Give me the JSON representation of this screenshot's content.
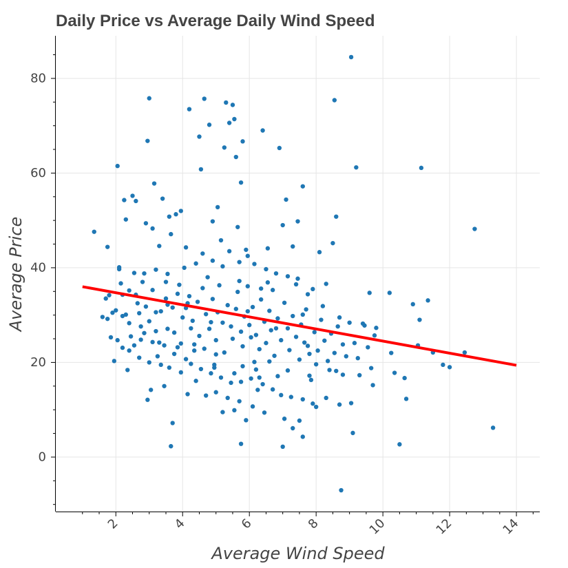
{
  "chart_data": {
    "type": "scatter",
    "title": "Daily Price vs Average Daily Wind Speed",
    "xlabel": "Average Wind Speed",
    "ylabel": "Average Price",
    "xlim": [
      0.2,
      14.7
    ],
    "ylim": [
      -11.5,
      89
    ],
    "x_ticks": [
      2,
      4,
      6,
      8,
      10,
      12,
      14
    ],
    "y_ticks": [
      0,
      20,
      40,
      60,
      80
    ],
    "x_tick_labels": [
      "2",
      "4",
      "6",
      "8",
      "10",
      "12",
      "14"
    ],
    "y_tick_labels": [
      "0",
      "20",
      "40",
      "60",
      "80"
    ],
    "grid": true,
    "point_color": "#1f77b4",
    "line_color": "#ff0000",
    "trend_line": {
      "x": [
        1.0,
        14.0
      ],
      "y": [
        36.0,
        19.4
      ]
    },
    "points": [
      [
        1.35,
        47.6
      ],
      [
        1.75,
        44.4
      ],
      [
        1.9,
        30.5
      ],
      [
        1.8,
        34.2
      ],
      [
        1.95,
        20.3
      ],
      [
        2.05,
        61.5
      ],
      [
        2.1,
        40.1
      ],
      [
        2.25,
        54.3
      ],
      [
        2.3,
        50.2
      ],
      [
        2.5,
        55.2
      ],
      [
        2.6,
        54.1
      ],
      [
        2.4,
        35.2
      ],
      [
        2.2,
        29.8
      ],
      [
        2.45,
        25.5
      ],
      [
        2.35,
        18.4
      ],
      [
        2.55,
        23.6
      ],
      [
        2.7,
        30.4
      ],
      [
        2.9,
        49.4
      ],
      [
        2.95,
        66.8
      ],
      [
        3.0,
        75.8
      ],
      [
        3.1,
        48.3
      ],
      [
        3.15,
        57.8
      ],
      [
        3.2,
        30.6
      ],
      [
        3.3,
        44.6
      ],
      [
        3.4,
        54.6
      ],
      [
        3.5,
        33.5
      ],
      [
        2.8,
        37.0
      ],
      [
        2.85,
        26.2
      ],
      [
        2.95,
        12.1
      ],
      [
        3.05,
        14.2
      ],
      [
        3.25,
        21.3
      ],
      [
        3.45,
        15.0
      ],
      [
        3.55,
        27.1
      ],
      [
        3.6,
        50.8
      ],
      [
        3.65,
        47.1
      ],
      [
        3.7,
        7.2
      ],
      [
        3.65,
        2.3
      ],
      [
        3.8,
        51.3
      ],
      [
        3.9,
        36.4
      ],
      [
        3.95,
        52.0
      ],
      [
        4.1,
        44.3
      ],
      [
        4.2,
        73.5
      ],
      [
        4.05,
        40.0
      ],
      [
        4.15,
        32.5
      ],
      [
        4.25,
        27.2
      ],
      [
        4.35,
        22.5
      ],
      [
        4.4,
        16.1
      ],
      [
        4.5,
        67.7
      ],
      [
        4.55,
        60.8
      ],
      [
        4.65,
        75.7
      ],
      [
        4.8,
        70.2
      ],
      [
        4.9,
        49.8
      ],
      [
        4.75,
        38.0
      ],
      [
        4.85,
        28.5
      ],
      [
        4.95,
        19.5
      ],
      [
        5.05,
        52.8
      ],
      [
        5.15,
        45.8
      ],
      [
        5.25,
        65.4
      ],
      [
        5.3,
        74.9
      ],
      [
        5.4,
        70.6
      ],
      [
        5.5,
        74.4
      ],
      [
        5.55,
        71.4
      ],
      [
        5.6,
        63.4
      ],
      [
        5.65,
        48.6
      ],
      [
        5.75,
        58.0
      ],
      [
        5.8,
        66.7
      ],
      [
        5.7,
        37.2
      ],
      [
        5.9,
        43.8
      ],
      [
        5.95,
        30.8
      ],
      [
        6.05,
        25.3
      ],
      [
        6.15,
        20.1
      ],
      [
        6.25,
        14.2
      ],
      [
        6.4,
        69.0
      ],
      [
        6.55,
        44.1
      ],
      [
        6.7,
        35.3
      ],
      [
        6.8,
        27.2
      ],
      [
        6.9,
        65.3
      ],
      [
        7.0,
        49.0
      ],
      [
        7.1,
        54.4
      ],
      [
        7.3,
        44.5
      ],
      [
        7.45,
        49.8
      ],
      [
        7.6,
        57.2
      ],
      [
        7.4,
        36.5
      ],
      [
        7.6,
        30.1
      ],
      [
        7.75,
        23.5
      ],
      [
        7.85,
        16.3
      ],
      [
        8.0,
        10.6
      ],
      [
        8.1,
        43.3
      ],
      [
        8.3,
        36.6
      ],
      [
        8.5,
        45.2
      ],
      [
        8.55,
        75.4
      ],
      [
        8.6,
        50.8
      ],
      [
        8.7,
        29.5
      ],
      [
        8.8,
        17.4
      ],
      [
        8.75,
        -7.0
      ],
      [
        9.05,
        84.5
      ],
      [
        9.2,
        61.2
      ],
      [
        9.1,
        5.1
      ],
      [
        9.3,
        17.3
      ],
      [
        9.45,
        27.8
      ],
      [
        9.6,
        34.7
      ],
      [
        9.7,
        15.2
      ],
      [
        9.8,
        27.3
      ],
      [
        10.2,
        34.7
      ],
      [
        10.25,
        22.0
      ],
      [
        10.35,
        17.8
      ],
      [
        10.5,
        2.7
      ],
      [
        10.65,
        16.7
      ],
      [
        10.7,
        12.3
      ],
      [
        10.9,
        32.3
      ],
      [
        11.05,
        23.6
      ],
      [
        11.1,
        29.0
      ],
      [
        11.15,
        61.1
      ],
      [
        11.35,
        33.1
      ],
      [
        11.5,
        22.1
      ],
      [
        11.8,
        19.5
      ],
      [
        12.0,
        19.0
      ],
      [
        12.45,
        22.1
      ],
      [
        12.75,
        48.2
      ],
      [
        13.3,
        6.2
      ],
      [
        1.6,
        29.6
      ],
      [
        1.7,
        33.5
      ],
      [
        1.75,
        29.2
      ],
      [
        1.85,
        25.3
      ],
      [
        2.0,
        31.0
      ],
      [
        2.15,
        36.7
      ],
      [
        2.2,
        34.3
      ],
      [
        2.3,
        30.1
      ],
      [
        2.4,
        28.3
      ],
      [
        2.6,
        34.3
      ],
      [
        2.65,
        32.5
      ],
      [
        2.75,
        27.6
      ],
      [
        2.9,
        31.8
      ],
      [
        3.0,
        28.7
      ],
      [
        3.1,
        35.3
      ],
      [
        3.2,
        26.6
      ],
      [
        3.3,
        24.2
      ],
      [
        3.35,
        30.8
      ],
      [
        3.5,
        37.0
      ],
      [
        3.55,
        32.2
      ],
      [
        3.7,
        31.6
      ],
      [
        3.75,
        26.3
      ],
      [
        3.85,
        34.5
      ],
      [
        3.95,
        24.0
      ],
      [
        4.0,
        29.5
      ],
      [
        4.1,
        31.5
      ],
      [
        4.2,
        34.0
      ],
      [
        4.3,
        28.8
      ],
      [
        4.45,
        32.8
      ],
      [
        4.5,
        25.6
      ],
      [
        4.6,
        35.7
      ],
      [
        4.7,
        30.2
      ],
      [
        4.8,
        27.1
      ],
      [
        4.9,
        33.4
      ],
      [
        5.0,
        24.7
      ],
      [
        5.05,
        30.6
      ],
      [
        5.1,
        36.3
      ],
      [
        5.2,
        28.4
      ],
      [
        5.25,
        22.1
      ],
      [
        5.35,
        32.1
      ],
      [
        5.45,
        27.6
      ],
      [
        5.5,
        25.0
      ],
      [
        5.6,
        31.3
      ],
      [
        5.65,
        34.9
      ],
      [
        5.75,
        26.5
      ],
      [
        5.8,
        23.4
      ],
      [
        5.85,
        29.7
      ],
      [
        5.95,
        36.1
      ],
      [
        6.0,
        27.9
      ],
      [
        6.1,
        31.7
      ],
      [
        6.2,
        25.8
      ],
      [
        6.3,
        22.8
      ],
      [
        6.35,
        33.3
      ],
      [
        6.45,
        28.6
      ],
      [
        6.5,
        24.1
      ],
      [
        6.6,
        30.9
      ],
      [
        6.65,
        26.8
      ],
      [
        6.75,
        21.4
      ],
      [
        6.85,
        29.3
      ],
      [
        6.95,
        24.7
      ],
      [
        7.05,
        32.6
      ],
      [
        7.15,
        27.2
      ],
      [
        7.2,
        22.6
      ],
      [
        7.3,
        29.8
      ],
      [
        7.4,
        25.4
      ],
      [
        7.5,
        20.6
      ],
      [
        7.55,
        28.0
      ],
      [
        7.65,
        24.2
      ],
      [
        7.7,
        31.2
      ],
      [
        7.8,
        21.8
      ],
      [
        7.95,
        26.4
      ],
      [
        8.05,
        22.5
      ],
      [
        8.15,
        29.0
      ],
      [
        8.25,
        24.6
      ],
      [
        8.35,
        20.3
      ],
      [
        8.45,
        26.1
      ],
      [
        8.55,
        22.0
      ],
      [
        8.65,
        27.6
      ],
      [
        8.8,
        23.8
      ],
      [
        8.9,
        21.3
      ],
      [
        9.0,
        28.4
      ],
      [
        9.15,
        24.1
      ],
      [
        9.25,
        20.9
      ],
      [
        9.4,
        28.2
      ],
      [
        9.55,
        23.2
      ],
      [
        9.65,
        18.8
      ],
      [
        9.75,
        25.7
      ],
      [
        8.6,
        18.2
      ],
      [
        8.2,
        31.9
      ],
      [
        7.9,
        35.5
      ],
      [
        4.4,
        40.9
      ],
      [
        4.6,
        43.0
      ],
      [
        4.9,
        41.5
      ],
      [
        5.2,
        40.3
      ],
      [
        5.4,
        43.5
      ],
      [
        5.7,
        41.2
      ],
      [
        5.95,
        42.5
      ],
      [
        6.15,
        40.8
      ],
      [
        6.5,
        39.7
      ],
      [
        6.8,
        38.8
      ],
      [
        7.15,
        38.2
      ],
      [
        7.45,
        37.7
      ],
      [
        3.2,
        39.6
      ],
      [
        3.55,
        38.7
      ],
      [
        2.85,
        38.8
      ],
      [
        2.55,
        38.9
      ],
      [
        2.1,
        39.7
      ],
      [
        6.35,
        35.6
      ],
      [
        6.55,
        36.9
      ],
      [
        7.75,
        34.4
      ],
      [
        4.25,
        19.7
      ],
      [
        4.55,
        18.6
      ],
      [
        4.85,
        17.7
      ],
      [
        5.15,
        16.8
      ],
      [
        5.45,
        15.7
      ],
      [
        5.75,
        15.9
      ],
      [
        6.05,
        16.6
      ],
      [
        6.4,
        15.4
      ],
      [
        6.7,
        14.3
      ],
      [
        6.95,
        13.1
      ],
      [
        7.25,
        12.7
      ],
      [
        7.6,
        12.2
      ],
      [
        7.9,
        11.3
      ],
      [
        8.3,
        12.5
      ],
      [
        8.7,
        11.1
      ],
      [
        9.05,
        11.4
      ],
      [
        5.0,
        13.7
      ],
      [
        5.35,
        12.5
      ],
      [
        5.7,
        11.8
      ],
      [
        6.1,
        10.7
      ],
      [
        3.95,
        17.9
      ],
      [
        3.6,
        18.9
      ],
      [
        3.35,
        19.5
      ],
      [
        3.0,
        20.0
      ],
      [
        2.7,
        21.0
      ],
      [
        2.4,
        22.5
      ],
      [
        2.2,
        23.1
      ],
      [
        2.05,
        24.7
      ],
      [
        4.15,
        13.3
      ],
      [
        4.7,
        13.0
      ],
      [
        5.55,
        9.9
      ],
      [
        6.45,
        9.4
      ],
      [
        7.05,
        8.1
      ],
      [
        7.5,
        7.7
      ],
      [
        5.9,
        7.8
      ],
      [
        5.2,
        9.5
      ],
      [
        7.3,
        6.1
      ],
      [
        7.6,
        4.3
      ],
      [
        5.75,
        2.8
      ],
      [
        7.0,
        2.2
      ],
      [
        6.6,
        20.2
      ],
      [
        6.2,
        18.5
      ],
      [
        5.8,
        19.2
      ],
      [
        5.0,
        21.7
      ],
      [
        4.65,
        22.9
      ],
      [
        4.35,
        23.8
      ],
      [
        3.85,
        23.2
      ],
      [
        3.45,
        23.6
      ],
      [
        3.1,
        24.3
      ],
      [
        2.75,
        24.8
      ],
      [
        8.0,
        19.6
      ],
      [
        8.4,
        18.4
      ],
      [
        7.8,
        17.2
      ],
      [
        7.15,
        18.3
      ],
      [
        6.85,
        17.1
      ],
      [
        6.3,
        16.8
      ],
      [
        5.55,
        17.7
      ],
      [
        4.95,
        18.9
      ],
      [
        4.1,
        20.7
      ],
      [
        3.75,
        21.8
      ]
    ]
  }
}
